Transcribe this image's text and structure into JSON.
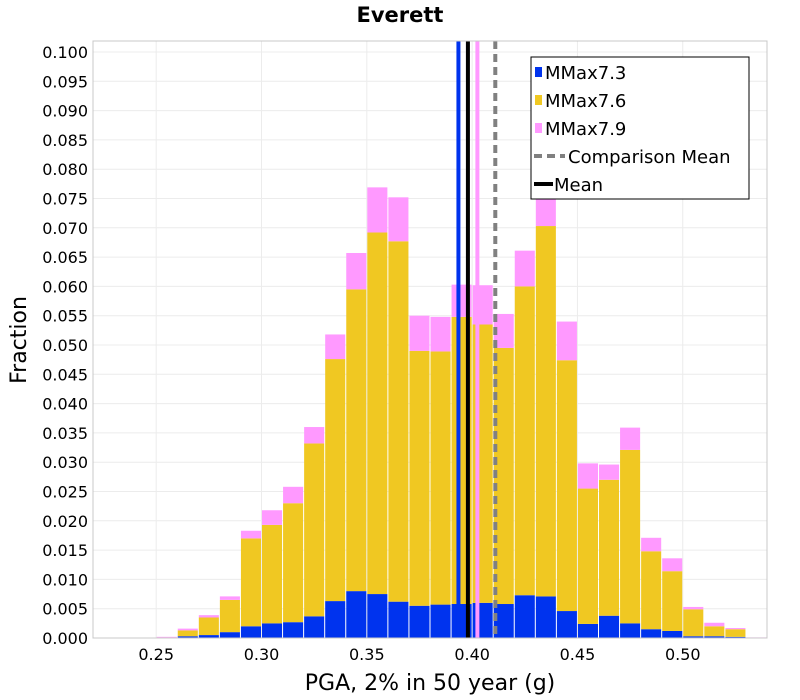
{
  "chart_data": {
    "type": "bar",
    "stacked": true,
    "title": "Everett",
    "xlabel": "PGA, 2% in 50 year (g)",
    "ylabel": "Fraction",
    "xlim": [
      0.22,
      0.54
    ],
    "ylim": [
      0.0,
      0.102
    ],
    "xticks": [
      "0.25",
      "0.30",
      "0.35",
      "0.40",
      "0.45",
      "0.50"
    ],
    "yticks": [
      "0.000",
      "0.005",
      "0.010",
      "0.015",
      "0.020",
      "0.025",
      "0.030",
      "0.035",
      "0.040",
      "0.045",
      "0.050",
      "0.055",
      "0.060",
      "0.065",
      "0.070",
      "0.075",
      "0.080",
      "0.085",
      "0.090",
      "0.095",
      "0.100"
    ],
    "bin_width": 0.01,
    "x": [
      0.255,
      0.265,
      0.275,
      0.285,
      0.295,
      0.305,
      0.315,
      0.325,
      0.335,
      0.345,
      0.355,
      0.365,
      0.375,
      0.385,
      0.395,
      0.405,
      0.415,
      0.425,
      0.435,
      0.445,
      0.455,
      0.465,
      0.475,
      0.485,
      0.495,
      0.505,
      0.515,
      0.525,
      0.535
    ],
    "series": [
      {
        "name": "MMax7.3",
        "color": "#0033ee",
        "values": [
          0.0,
          0.0003,
          0.0005,
          0.001,
          0.002,
          0.0025,
          0.0027,
          0.0037,
          0.0063,
          0.008,
          0.0075,
          0.0062,
          0.0055,
          0.0057,
          0.0058,
          0.006,
          0.0058,
          0.0073,
          0.0071,
          0.0046,
          0.0024,
          0.0038,
          0.0025,
          0.0015,
          0.0012,
          0.0003,
          0.0003,
          0.0002,
          0.0
        ]
      },
      {
        "name": "MMax7.6",
        "color": "#f0c822",
        "values": [
          0.0001,
          0.001,
          0.003,
          0.0055,
          0.015,
          0.0168,
          0.0203,
          0.0295,
          0.0413,
          0.0515,
          0.0617,
          0.0615,
          0.0435,
          0.0432,
          0.049,
          0.0475,
          0.0437,
          0.0527,
          0.0632,
          0.0428,
          0.0231,
          0.0232,
          0.0296,
          0.0133,
          0.0102,
          0.0046,
          0.0017,
          0.0013,
          0.0
        ]
      },
      {
        "name": "MMax7.9",
        "color": "#ff99ff",
        "values": [
          0.0001,
          0.0003,
          0.0004,
          0.0006,
          0.0013,
          0.0025,
          0.0028,
          0.0028,
          0.0042,
          0.0062,
          0.0077,
          0.0075,
          0.006,
          0.0059,
          0.0055,
          0.0067,
          0.0058,
          0.0061,
          0.0077,
          0.0066,
          0.0043,
          0.0026,
          0.0038,
          0.0023,
          0.0022,
          0.0004,
          0.0006,
          0.0002,
          0.0001
        ]
      }
    ],
    "vlines": [
      {
        "name": "",
        "x": 0.3935,
        "color": "#0033ee",
        "style": "solid"
      },
      {
        "name": "",
        "x": 0.4025,
        "color": "#ff99ff",
        "style": "solid"
      },
      {
        "name": "Mean",
        "x": 0.398,
        "color": "#000000",
        "style": "solid"
      },
      {
        "name": "Comparison Mean",
        "x": 0.411,
        "color": "#808080",
        "style": "dashed"
      }
    ],
    "legend": {
      "position": "top-right",
      "entries": [
        {
          "label": "MMax7.3",
          "color": "#0033ee",
          "kind": "box"
        },
        {
          "label": "MMax7.6",
          "color": "#f0c822",
          "kind": "box"
        },
        {
          "label": "MMax7.9",
          "color": "#ff99ff",
          "kind": "box"
        },
        {
          "label": "Comparison Mean",
          "color": "#808080",
          "kind": "dashed-line"
        },
        {
          "label": "Mean",
          "color": "#000000",
          "kind": "line"
        }
      ]
    },
    "grid": true
  }
}
